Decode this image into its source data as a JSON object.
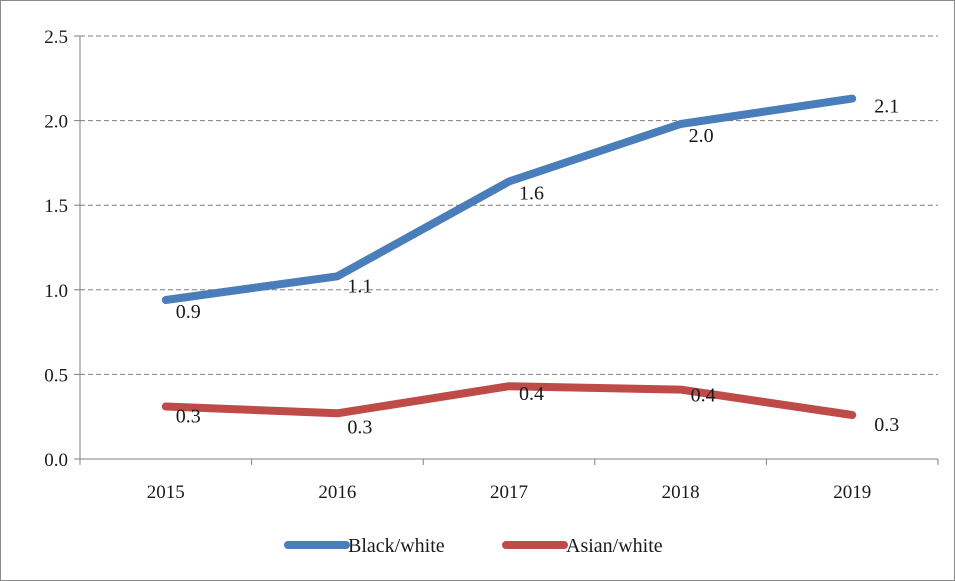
{
  "chart_data": {
    "type": "line",
    "title": "",
    "xlabel": "",
    "ylabel": "",
    "categories": [
      "2015",
      "2016",
      "2017",
      "2018",
      "2019"
    ],
    "ylim": [
      0,
      2.5
    ],
    "yticks": [
      "0.0",
      "0.5",
      "1.0",
      "1.5",
      "2.0",
      "2.5"
    ],
    "grid": "horizontal dashed",
    "legend_position": "bottom",
    "series": [
      {
        "name": "Black/white",
        "color": "#4a7ebb",
        "values": [
          0.94,
          1.08,
          1.64,
          1.98,
          2.13
        ],
        "labels": [
          "0.9",
          "1.1",
          "1.6",
          "2.0",
          "2.1"
        ]
      },
      {
        "name": "Asian/white",
        "color": "#be4b48",
        "values": [
          0.31,
          0.27,
          0.43,
          0.41,
          0.26
        ],
        "labels": [
          "0.3",
          "0.3",
          "0.4",
          "0.4",
          "0.3"
        ]
      }
    ]
  }
}
